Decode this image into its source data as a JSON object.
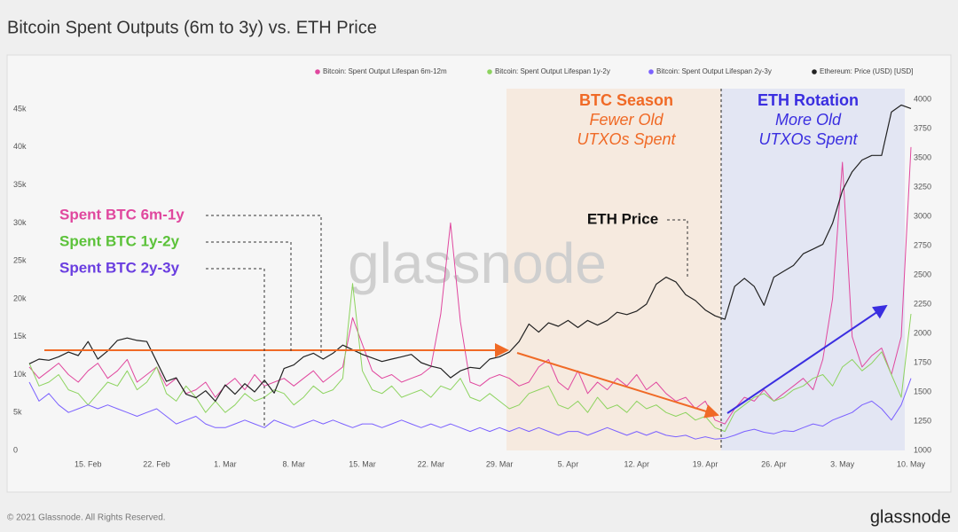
{
  "chart_data": {
    "type": "line",
    "title": "Bitcoin Spent Outputs (6m to 3y) vs. ETH Price",
    "categories": [
      null,
      null,
      null,
      null,
      null,
      null,
      "15. Feb",
      null,
      null,
      null,
      null,
      null,
      null,
      "22. Feb",
      null,
      null,
      null,
      null,
      null,
      null,
      "1. Mar",
      null,
      null,
      null,
      null,
      null,
      null,
      "8. Mar",
      null,
      null,
      null,
      null,
      null,
      null,
      "15. Mar",
      null,
      null,
      null,
      null,
      null,
      null,
      "22. Mar",
      null,
      null,
      null,
      null,
      null,
      null,
      "29. Mar",
      null,
      null,
      null,
      null,
      null,
      null,
      "5. Apr",
      null,
      null,
      null,
      null,
      null,
      null,
      "12. Apr",
      null,
      null,
      null,
      null,
      null,
      null,
      "19. Apr",
      null,
      null,
      null,
      null,
      null,
      null,
      "26. Apr",
      null,
      null,
      null,
      null,
      null,
      null,
      "3. May",
      null,
      null,
      null,
      null,
      null,
      null,
      "10. May"
    ],
    "series": [
      {
        "name": "Bitcoin: Spent Output Lifespan 6m-12m",
        "color": "#e0479e",
        "values": [
          11000,
          9500,
          10500,
          11500,
          10000,
          9000,
          10500,
          11500,
          9500,
          10500,
          12000,
          9000,
          10000,
          11000,
          8500,
          9500,
          7500,
          8000,
          9000,
          7000,
          8500,
          9500,
          8000,
          10000,
          8500,
          9000,
          9500,
          8500,
          9500,
          10500,
          9000,
          10000,
          11000,
          17500,
          14000,
          10500,
          9500,
          10000,
          9000,
          9500,
          10000,
          11000,
          18000,
          30000,
          17000,
          9000,
          8500,
          9500,
          10000,
          9500,
          8500,
          9000,
          11000,
          12000,
          9000,
          8000,
          10500,
          7500,
          9000,
          8000,
          9500,
          8500,
          10000,
          8000,
          9000,
          7500,
          6500,
          7000,
          5500,
          6500,
          4000,
          3500,
          5500,
          7000,
          6500,
          8000,
          6500,
          7500,
          8500,
          9500,
          8000,
          12000,
          20000,
          38000,
          15000,
          11000,
          12500,
          13500,
          10000,
          15000,
          40000
        ]
      },
      {
        "name": "Bitcoin: Spent Output Lifespan 1y-2y",
        "color": "#8dd35f",
        "values": [
          11500,
          8500,
          9000,
          10000,
          8000,
          7500,
          6000,
          7500,
          9000,
          8500,
          10500,
          8000,
          9000,
          11000,
          7500,
          6500,
          8500,
          7000,
          5000,
          6500,
          5000,
          6000,
          7500,
          6500,
          7000,
          8000,
          7500,
          6000,
          7000,
          8500,
          7500,
          8000,
          9500,
          22000,
          10500,
          8000,
          7500,
          8500,
          7000,
          7500,
          8000,
          7000,
          8500,
          8000,
          9500,
          7000,
          6500,
          7500,
          6500,
          5500,
          6000,
          7500,
          8000,
          8500,
          6000,
          5500,
          6500,
          5000,
          7000,
          5500,
          6000,
          5000,
          6500,
          5500,
          6000,
          5000,
          4500,
          5000,
          4000,
          4500,
          3000,
          2500,
          5000,
          6000,
          7000,
          7500,
          6500,
          7000,
          8000,
          8500,
          9500,
          10000,
          8500,
          11000,
          12000,
          10500,
          11500,
          13000,
          10000,
          7000,
          18000
        ]
      },
      {
        "name": "Bitcoin: Spent Output Lifespan 2y-3y",
        "color": "#7b61ff",
        "values": [
          9000,
          6500,
          7500,
          6000,
          5000,
          5500,
          6000,
          5500,
          6000,
          5500,
          5000,
          4500,
          5000,
          5500,
          4500,
          3500,
          4000,
          4500,
          3500,
          3000,
          3000,
          3500,
          4000,
          3500,
          3000,
          4000,
          3500,
          3000,
          3500,
          4000,
          3500,
          4000,
          3500,
          3000,
          3500,
          3500,
          3000,
          3500,
          4000,
          3500,
          3000,
          3500,
          3000,
          3500,
          3000,
          2500,
          3000,
          2500,
          3000,
          2500,
          3000,
          2500,
          3000,
          2500,
          2000,
          2500,
          2500,
          2000,
          2500,
          3000,
          2500,
          2000,
          2500,
          2000,
          2500,
          2000,
          1800,
          2000,
          1500,
          1800,
          1500,
          1600,
          2000,
          2500,
          2800,
          2400,
          2200,
          2600,
          2500,
          3000,
          3500,
          3200,
          4000,
          4500,
          5000,
          6000,
          6500,
          5500,
          4000,
          6000,
          9500
        ]
      },
      {
        "name": "Ethereum: Price (USD) [USD]",
        "color": "#222222",
        "axis": "y2",
        "values": [
          1740,
          1780,
          1770,
          1800,
          1840,
          1810,
          1930,
          1780,
          1850,
          1940,
          1960,
          1940,
          1930,
          1760,
          1590,
          1620,
          1480,
          1450,
          1510,
          1420,
          1560,
          1480,
          1570,
          1500,
          1600,
          1490,
          1700,
          1730,
          1800,
          1830,
          1780,
          1830,
          1900,
          1860,
          1820,
          1790,
          1760,
          1780,
          1800,
          1820,
          1750,
          1720,
          1700,
          1620,
          1680,
          1710,
          1700,
          1780,
          1800,
          1840,
          1930,
          2080,
          2010,
          2090,
          2060,
          2110,
          2050,
          2110,
          2070,
          2110,
          2180,
          2160,
          2190,
          2250,
          2420,
          2480,
          2440,
          2330,
          2280,
          2200,
          2150,
          2120,
          2400,
          2470,
          2400,
          2240,
          2480,
          2530,
          2580,
          2680,
          2720,
          2760,
          2940,
          3220,
          3380,
          3480,
          3520,
          3520,
          3890,
          3950,
          3920
        ]
      }
    ],
    "ylim": [
      0,
      47700
    ],
    "yticks": [
      0,
      {
        "value": 5000,
        "label": "5k"
      },
      {
        "value": 10000,
        "label": "10k"
      },
      {
        "value": 15000,
        "label": "15k"
      },
      {
        "value": 20000,
        "label": "20k"
      },
      {
        "value": 25000,
        "label": "25k"
      },
      {
        "value": 30000,
        "label": "30k"
      },
      {
        "value": 35000,
        "label": "35k"
      },
      {
        "value": 40000,
        "label": "40k"
      },
      {
        "value": 45000,
        "label": "45k"
      }
    ],
    "y2lim": [
      1000,
      4090
    ],
    "y2ticks": [
      1000,
      1250,
      1500,
      1750,
      2000,
      2250,
      2500,
      2750,
      3000,
      3250,
      3500,
      3750,
      4000
    ],
    "grid": false,
    "legend": "top-right",
    "annotations": [
      "BTC Season",
      "Fewer Old",
      "UTXOs Spent",
      "ETH Rotation",
      "More Old",
      "UTXOs Spent",
      "ETH Price",
      "Spent BTC 6m-1y",
      "Spent BTC 1y-2y",
      "Spent BTC 2y-3y"
    ],
    "watermark": "glassnode"
  },
  "footer": "© 2021 Glassnode. All Rights Reserved.",
  "brand": "glassnode"
}
